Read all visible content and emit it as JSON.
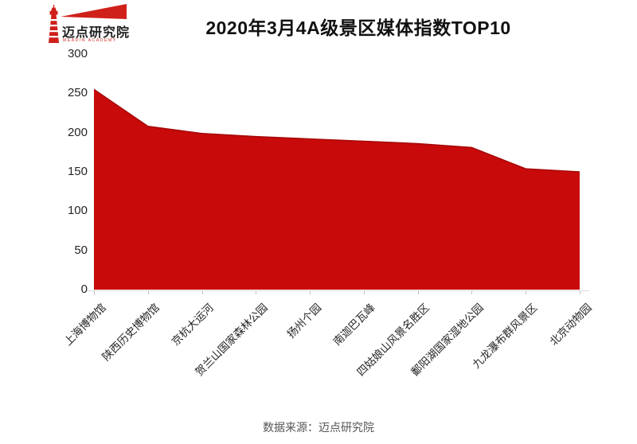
{
  "logo": {
    "title": "迈点研究院",
    "subtitle": "MEADIN ACADEMY",
    "color": "#d0201a"
  },
  "header": {
    "title": "2020年3月4A级景区媒体指数TOP10"
  },
  "footer": {
    "source": "数据来源：迈点研究院"
  },
  "chart_data": {
    "type": "area",
    "title": "2020年3月4A级景区媒体指数TOP10",
    "categories": [
      "上海博物馆",
      "陕西历史博物馆",
      "京杭大运河",
      "贺兰山国家森林公园",
      "扬州个园",
      "南迦巴瓦峰",
      "四姑娘山风景名胜区",
      "鄱阳湖国家湿地公园",
      "九龙瀑布群风景区",
      "北京动物园"
    ],
    "values": [
      255,
      208,
      199,
      195,
      192,
      189,
      186,
      181,
      154,
      150
    ],
    "xlabel": "",
    "ylabel": "",
    "ylim": [
      0,
      300
    ],
    "yticks": [
      0,
      50,
      100,
      150,
      200,
      250,
      300
    ],
    "grid": false,
    "legend": false,
    "area_color": "#c80a0a",
    "edge_color": "#a50808"
  }
}
